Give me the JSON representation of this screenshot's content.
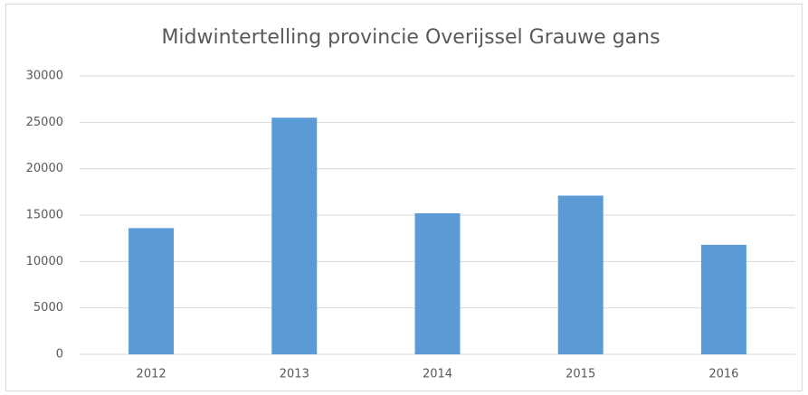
{
  "chart_data": {
    "type": "bar",
    "title": "Midwintertelling provincie Overijssel Grauwe gans",
    "categories": [
      "2012",
      "2013",
      "2014",
      "2015",
      "2016"
    ],
    "values": [
      13600,
      25500,
      15200,
      17100,
      11800
    ],
    "color": "#5b9bd5",
    "ylim": [
      0,
      30000
    ],
    "yticks": [
      0,
      5000,
      10000,
      15000,
      20000,
      25000,
      30000
    ],
    "grid": true
  }
}
